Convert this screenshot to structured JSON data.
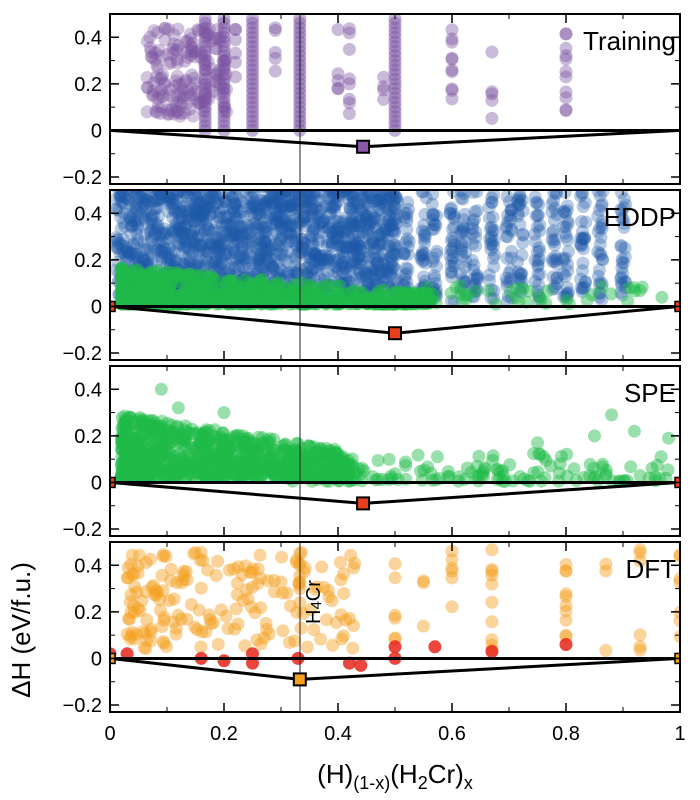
{
  "chart_data": {
    "type": "scatter",
    "title": "",
    "xlabel": "(H)(1-x)(H2Cr)x",
    "xlabel_parts": {
      "a": "(H)",
      "a_sub": "(1-x)",
      "b": "(H",
      "b_sub": "2",
      "c": "Cr)",
      "c_sub": "x"
    },
    "ylabel": "ΔH (eV/f.u.)",
    "xlim": [
      0,
      1
    ],
    "ylim": [
      -0.23,
      0.5
    ],
    "x_ticks": [
      0,
      0.2,
      0.4,
      0.6,
      0.8,
      1
    ],
    "x_tick_labels": [
      "0",
      "0.2",
      "0.4",
      "0.6",
      "0.8",
      "1"
    ],
    "y_ticks": [
      -0.2,
      0,
      0.2,
      0.4
    ],
    "y_tick_labels": [
      "−0.2",
      "0",
      "0.2",
      "0.4"
    ],
    "reference_line_x": 0.3333,
    "annotation": {
      "text": "H",
      "sub": "4",
      "tail": "Cr",
      "x": 0.3333
    },
    "colors": {
      "training": "#7b52a1",
      "eddp_blue": "#1f5ba8",
      "green": "#1fba48",
      "dft_orange": "#f5a020",
      "dft_red": "#e8261c",
      "hull_marker_red": "#e8401c",
      "hull_marker_orange": "#f5a020",
      "hull_marker_purple": "#8a5aa8"
    },
    "panels": [
      {
        "label": "Training",
        "hull": [
          [
            0,
            0
          ],
          [
            0.444,
            -0.07
          ],
          [
            1,
            0
          ]
        ],
        "hull_marker": {
          "x": 0.444,
          "y": -0.07,
          "color": "#8a5aa8"
        },
        "columns": [
          0.08,
          0.1,
          0.12,
          0.14,
          0.16,
          0.18,
          0.2,
          0.22,
          0.25,
          0.29,
          0.333,
          0.4,
          0.42,
          0.5,
          0.6,
          0.67,
          0.8
        ]
      },
      {
        "label": "EDDP",
        "hull": [
          [
            0,
            0
          ],
          [
            0.5,
            -0.115
          ],
          [
            1,
            0
          ]
        ],
        "hull_marker": {
          "x": 0.5,
          "y": -0.115,
          "color": "#e8401c"
        },
        "end_markers": [
          {
            "x": 0,
            "y": 0
          },
          {
            "x": 1,
            "y": 0
          }
        ]
      },
      {
        "label": "SPE",
        "hull": [
          [
            0,
            0
          ],
          [
            0.444,
            -0.09
          ],
          [
            1,
            0
          ]
        ],
        "hull_marker": {
          "x": 0.444,
          "y": -0.09,
          "color": "#e8401c"
        },
        "end_markers": [
          {
            "x": 0,
            "y": 0
          },
          {
            "x": 1,
            "y": 0
          }
        ]
      },
      {
        "label": "DFT",
        "hull": [
          [
            0,
            0
          ],
          [
            0.333,
            -0.09
          ],
          [
            1,
            0
          ]
        ],
        "hull_marker": {
          "x": 0.333,
          "y": -0.09,
          "color": "#f5a020"
        },
        "end_markers": [
          {
            "x": 0,
            "y": 0
          },
          {
            "x": 1,
            "y": 0
          }
        ],
        "near_hull_points": [
          {
            "x": 0,
            "y": 0.02
          },
          {
            "x": 0.03,
            "y": 0.02
          },
          {
            "x": 0.16,
            "y": 0.0
          },
          {
            "x": 0.2,
            "y": -0.01
          },
          {
            "x": 0.25,
            "y": 0.02
          },
          {
            "x": 0.25,
            "y": -0.02
          },
          {
            "x": 0.33,
            "y": 0.0
          },
          {
            "x": 0.42,
            "y": -0.02
          },
          {
            "x": 0.44,
            "y": -0.03
          },
          {
            "x": 0.5,
            "y": 0.0
          },
          {
            "x": 0.5,
            "y": 0.05
          },
          {
            "x": 0.57,
            "y": 0.05
          },
          {
            "x": 0.67,
            "y": 0.03
          },
          {
            "x": 0.8,
            "y": 0.06
          }
        ]
      }
    ]
  }
}
